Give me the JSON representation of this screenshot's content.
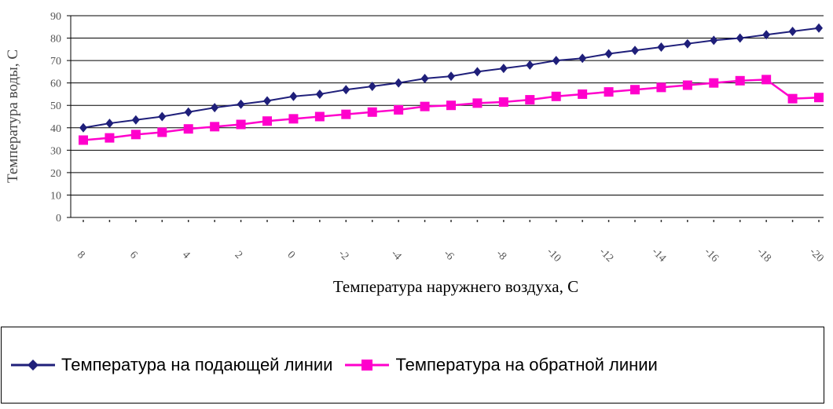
{
  "chart_data": {
    "type": "line",
    "xlabel": "Температура наружнего воздуха, С",
    "ylabel": "Температура воды, С",
    "ylim": [
      0,
      90
    ],
    "yticks": [
      "0",
      "10",
      "20",
      "30",
      "40",
      "50",
      "60",
      "70",
      "80",
      "90"
    ],
    "x": [
      8,
      7,
      6,
      5,
      4,
      3,
      2,
      1,
      0,
      -1,
      -2,
      -3,
      -4,
      -5,
      -6,
      -7,
      -8,
      -9,
      -10,
      -11,
      -12,
      -13,
      -14,
      -15,
      -16,
      -17,
      -18,
      -19,
      -20
    ],
    "xtick_labels": [
      "8",
      "6",
      "4",
      "2",
      "0",
      "-2",
      "-4",
      "-6",
      "-8",
      "-10",
      "-12",
      "-14",
      "-16",
      "-18",
      "-20"
    ],
    "grid": "horizontal",
    "legend_position": "bottom",
    "series": [
      {
        "name": "Температура на подающей линии",
        "color": "#1f1f7a",
        "marker": "diamond",
        "values": [
          40,
          42,
          43.5,
          45,
          47,
          49,
          50.5,
          52,
          54,
          55,
          57,
          58.5,
          60,
          62,
          63,
          65,
          66.5,
          68,
          70,
          71,
          73,
          74.5,
          76,
          77.5,
          79,
          80,
          81.5,
          83,
          84.5
        ]
      },
      {
        "name": "Температура на обратной линии",
        "color": "#ff00cc",
        "marker": "square",
        "values": [
          34.5,
          35.5,
          37,
          38,
          39.5,
          40.5,
          41.5,
          43,
          44,
          45,
          46,
          47,
          48,
          49.5,
          50,
          51,
          51.5,
          52.5,
          54,
          55,
          56,
          57,
          58,
          59,
          60,
          61,
          61.5,
          53,
          53.5
        ]
      }
    ]
  }
}
